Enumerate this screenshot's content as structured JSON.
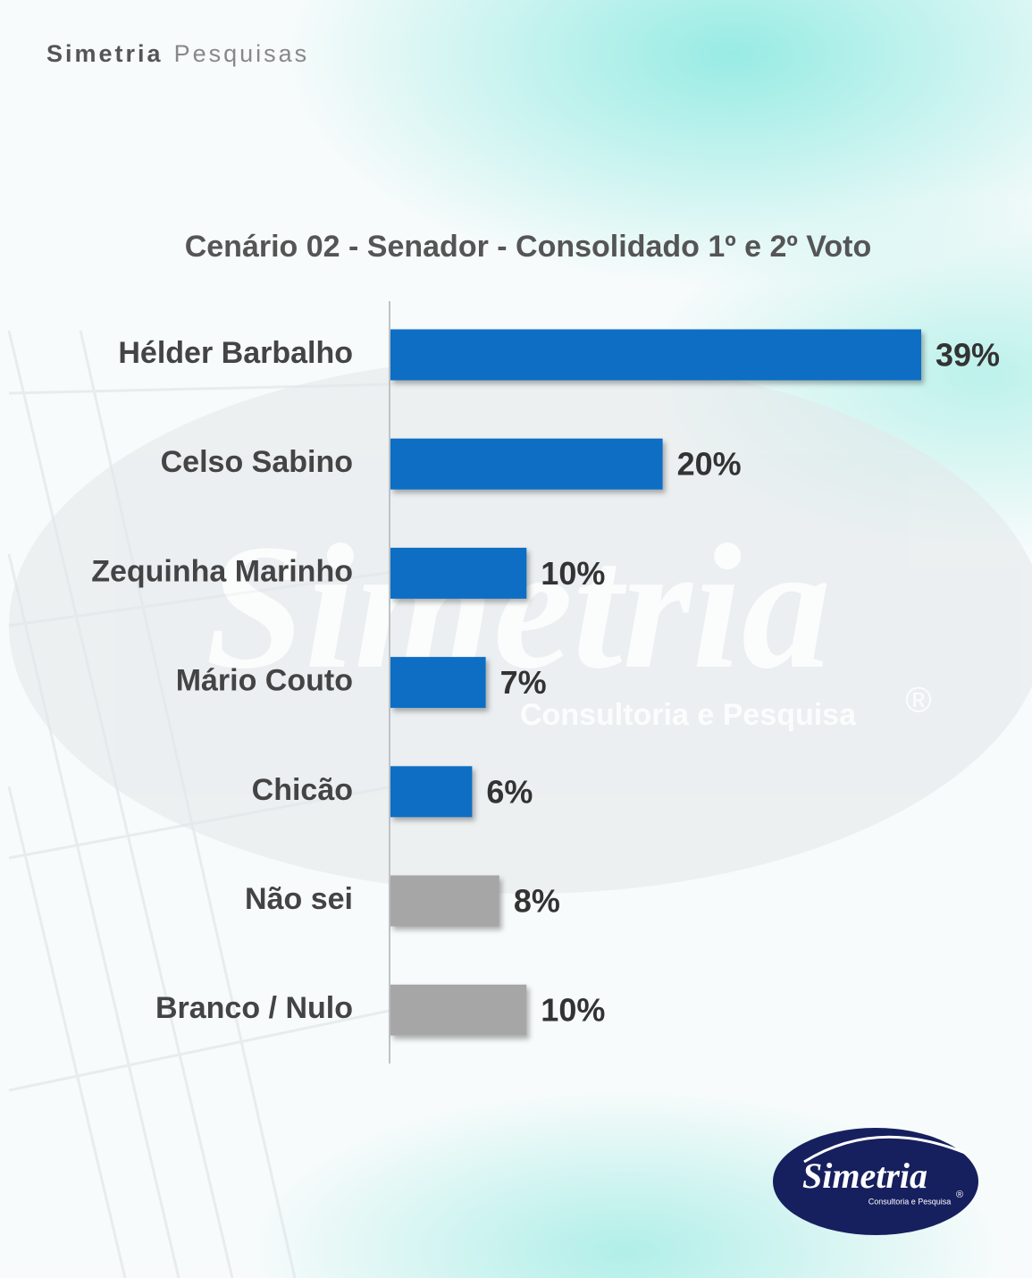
{
  "header": {
    "brand": "Simetria",
    "brand_sub": "Pesquisas"
  },
  "watermark": {
    "name": "Simetria",
    "tagline": "Consultoria e Pesquisa",
    "mark": "®"
  },
  "logo": {
    "name": "Simetria",
    "tagline": "Consultoria e Pesquisa",
    "mark": "®"
  },
  "chart_data": {
    "type": "bar",
    "orientation": "horizontal",
    "title": "Cenário 02 - Senador - Consolidado 1º e 2º Voto",
    "categories": [
      "Hélder Barbalho",
      "Celso Sabino",
      "Zequinha Marinho",
      "Mário Couto",
      "Chicão",
      "Não sei",
      "Branco / Nulo"
    ],
    "values": [
      39,
      20,
      10,
      7,
      6,
      8,
      10
    ],
    "value_labels": [
      "39%",
      "20%",
      "10%",
      "7%",
      "6%",
      "8%",
      "10%"
    ],
    "colors": [
      "#0a6ec4",
      "#0a6ec4",
      "#0a6ec4",
      "#0a6ec4",
      "#0a6ec4",
      "#a6a6a6",
      "#a6a6a6"
    ],
    "grid": false
  }
}
